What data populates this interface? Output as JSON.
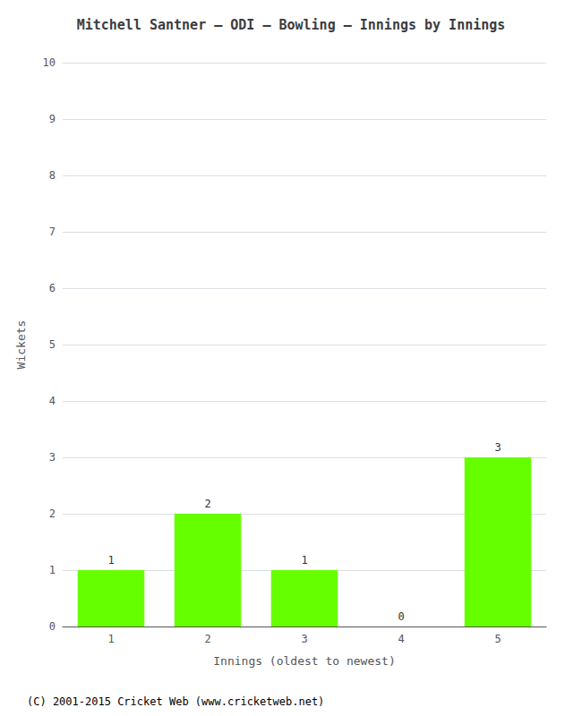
{
  "chart_data": {
    "type": "bar",
    "title": "Mitchell Santner – ODI – Bowling – Innings by Innings",
    "xlabel": "Innings (oldest to newest)",
    "ylabel": "Wickets",
    "categories": [
      "1",
      "2",
      "3",
      "4",
      "5"
    ],
    "values": [
      1,
      2,
      1,
      0,
      3
    ],
    "color": "#66ff00",
    "ylim": [
      0,
      10
    ],
    "yticks": [
      0,
      1,
      2,
      3,
      4,
      5,
      6,
      7,
      8,
      9,
      10
    ],
    "grid": true,
    "data_labels": true,
    "annotations": [
      "(C) 2001-2015 Cricket Web (www.cricketweb.net)"
    ]
  }
}
